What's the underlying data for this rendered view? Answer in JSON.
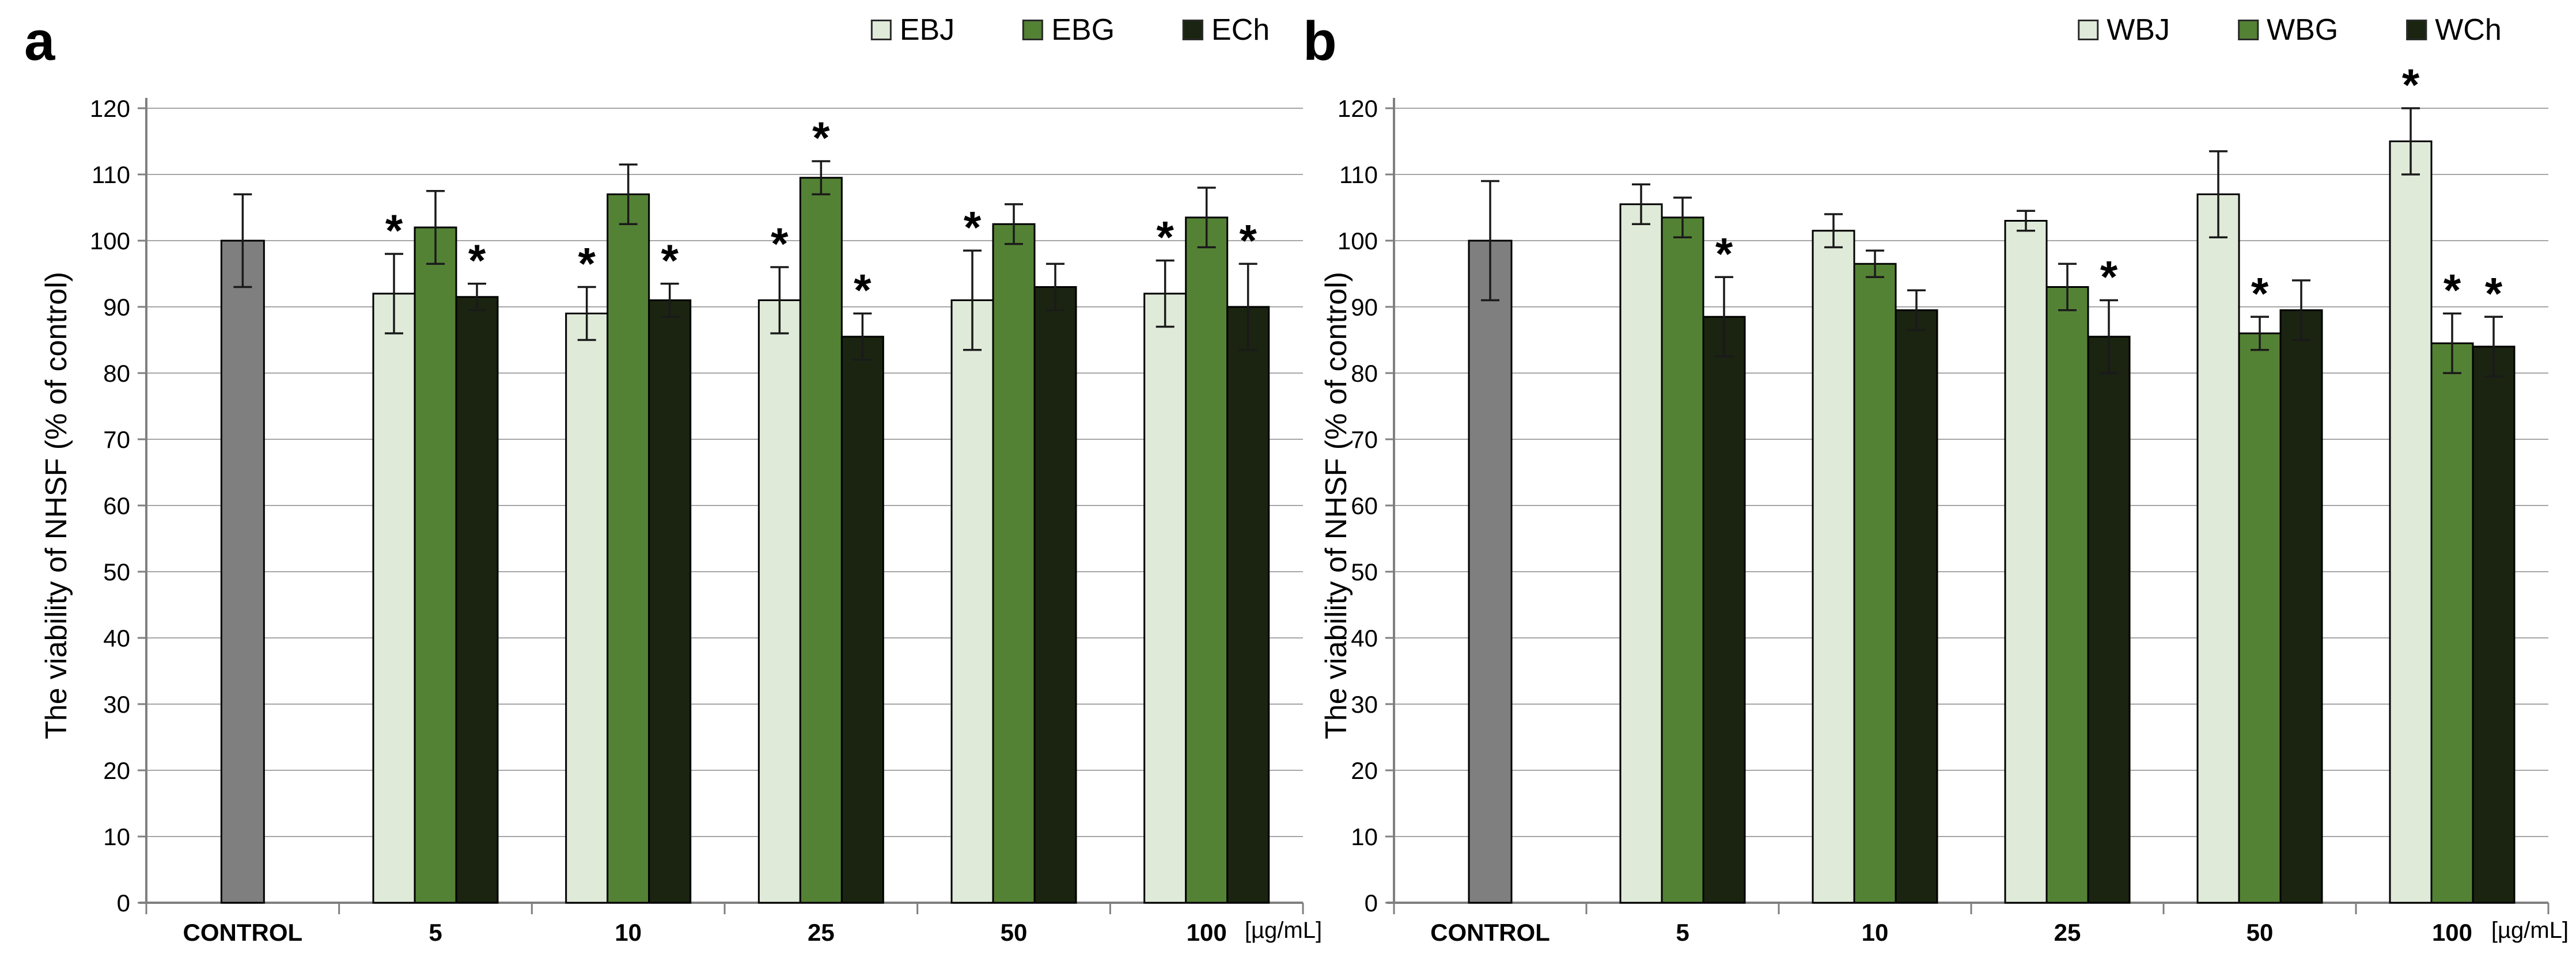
{
  "styles": {
    "background": "#ffffff",
    "grid_color": "#a6a6a6",
    "axis_color": "#7f7f7f",
    "bar_border_color": "#000000",
    "error_bar_color": "#1a1a1a",
    "text_color": "#000000",
    "control_color": "#7f7f7f",
    "light_green": "#dfead8",
    "mid_green": "#548235",
    "dark_green": "#1a2410"
  },
  "chart_data": [
    {
      "type": "bar",
      "panel_label": "a",
      "title": "",
      "ylabel": "The viability of NHSF (% of control)",
      "x_unit_label": "[µg/mL]",
      "ylim": [
        0,
        120
      ],
      "ytick_step": 10,
      "grid": true,
      "legend_position": "top",
      "significance_marker": "*",
      "categories": [
        "CONTROL",
        "5",
        "10",
        "25",
        "50",
        "100"
      ],
      "control": {
        "label": "CONTROL",
        "value": 100,
        "error": 7,
        "color": "#7f7f7f"
      },
      "series": [
        {
          "name": "EBJ",
          "color": "#dfead8",
          "values": [
            92,
            89,
            91,
            91,
            92
          ],
          "errors": [
            6,
            4,
            5,
            7.5,
            5
          ],
          "significant": [
            true,
            true,
            true,
            true,
            true
          ]
        },
        {
          "name": "EBG",
          "color": "#548235",
          "values": [
            102,
            107,
            109.5,
            102.5,
            103.5
          ],
          "errors": [
            5.5,
            4.5,
            2.5,
            3,
            4.5
          ],
          "significant": [
            false,
            false,
            true,
            false,
            false
          ]
        },
        {
          "name": "ECh",
          "color": "#1a2410",
          "values": [
            91.5,
            91,
            85.5,
            93,
            90
          ],
          "errors": [
            2,
            2.5,
            3.5,
            3.5,
            6.5
          ],
          "significant": [
            true,
            true,
            true,
            false,
            true
          ]
        }
      ]
    },
    {
      "type": "bar",
      "panel_label": "b",
      "title": "",
      "ylabel": "The viability of NHSF (% of control)",
      "x_unit_label": "[µg/mL]",
      "ylim": [
        0,
        120
      ],
      "ytick_step": 10,
      "grid": true,
      "legend_position": "top",
      "significance_marker": "*",
      "categories": [
        "CONTROL",
        "5",
        "10",
        "25",
        "50",
        "100"
      ],
      "control": {
        "label": "CONTROL",
        "value": 100,
        "error": 9,
        "color": "#7f7f7f"
      },
      "series": [
        {
          "name": "WBJ",
          "color": "#dfead8",
          "values": [
            105.5,
            101.5,
            103,
            107,
            115
          ],
          "errors": [
            3,
            2.5,
            1.5,
            6.5,
            5
          ],
          "significant": [
            false,
            false,
            false,
            false,
            true
          ]
        },
        {
          "name": "WBG",
          "color": "#548235",
          "values": [
            103.5,
            96.5,
            93,
            86,
            84.5
          ],
          "errors": [
            3,
            2,
            3.5,
            2.5,
            4.5
          ],
          "significant": [
            false,
            false,
            false,
            true,
            true
          ]
        },
        {
          "name": "WCh",
          "color": "#1a2410",
          "values": [
            88.5,
            89.5,
            85.5,
            89.5,
            84
          ],
          "errors": [
            6,
            3,
            5.5,
            4.5,
            4.5
          ],
          "significant": [
            true,
            false,
            true,
            false,
            true
          ]
        }
      ]
    }
  ]
}
